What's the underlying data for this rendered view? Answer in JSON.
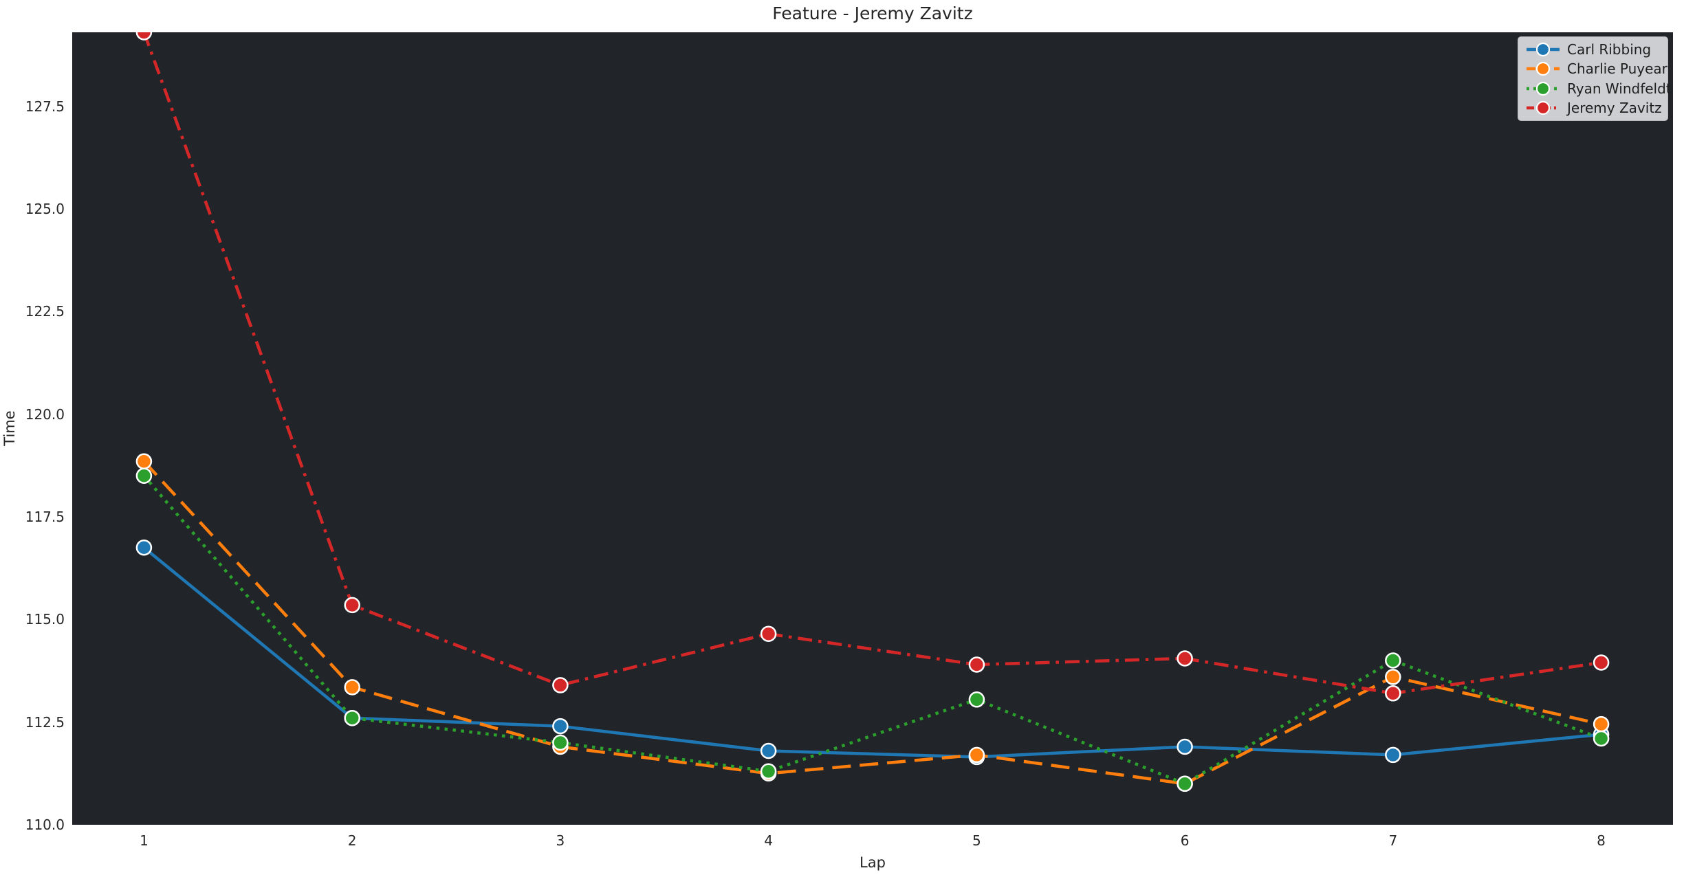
{
  "figure": {
    "background": "#ffffff",
    "plot_background": "#212529",
    "text_color": "#262626"
  },
  "chart_data": {
    "type": "line",
    "title": "Feature - Jeremy Zavitz",
    "xlabel": "Lap",
    "ylabel": "Time",
    "grid": false,
    "legend_position": "upper right",
    "x": [
      1,
      2,
      3,
      4,
      5,
      6,
      7,
      8
    ],
    "xlim": [
      0.655,
      8.345
    ],
    "ylim": [
      110.0,
      129.3
    ],
    "yticks": [
      110.0,
      112.5,
      115.0,
      117.5,
      120.0,
      122.5,
      125.0,
      127.5
    ],
    "marker": "circle",
    "series": [
      {
        "name": "Carl Ribbing",
        "color": "#1f77b4",
        "dash": "solid",
        "values": [
          116.75,
          112.6,
          112.4,
          111.8,
          111.65,
          111.9,
          111.7,
          112.2
        ]
      },
      {
        "name": "Charlie Puyear",
        "color": "#ff7f0e",
        "dash": "dashed",
        "values": [
          118.85,
          113.35,
          111.9,
          111.25,
          111.7,
          111.0,
          113.6,
          112.45
        ]
      },
      {
        "name": "Ryan Windfeldt",
        "color": "#2ca02c",
        "dash": "dotted",
        "values": [
          118.5,
          112.6,
          112.0,
          111.3,
          113.05,
          111.0,
          114.0,
          112.1
        ]
      },
      {
        "name": "Jeremy Zavitz",
        "color": "#d62728",
        "dash": "dashdot",
        "values": [
          129.3,
          115.35,
          113.4,
          114.65,
          113.9,
          114.05,
          113.2,
          113.95
        ]
      }
    ]
  }
}
